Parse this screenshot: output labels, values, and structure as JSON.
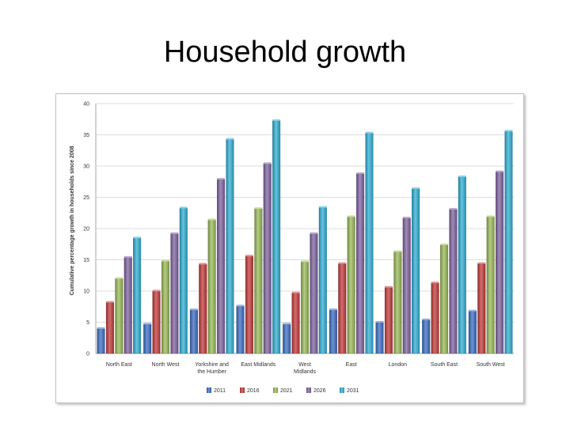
{
  "slide": {
    "title": "Household growth"
  },
  "chart_data": {
    "type": "bar",
    "title": "",
    "xlabel": "",
    "ylabel": "Cumulative percentage growth in households since 2008",
    "ylim": [
      0,
      40
    ],
    "yticks": [
      0,
      5,
      10,
      15,
      20,
      25,
      30,
      35,
      40
    ],
    "grid": true,
    "legend_position": "bottom",
    "categories": [
      [
        "North East"
      ],
      [
        "North West"
      ],
      [
        "Yorkshire and",
        "the Humber"
      ],
      [
        "East Midlands"
      ],
      [
        "West",
        "Midlands"
      ],
      [
        "East"
      ],
      [
        "London"
      ],
      [
        "South East"
      ],
      [
        "South West"
      ]
    ],
    "series": [
      {
        "name": "2011",
        "color": "#3d6fc4",
        "values": [
          4.0,
          4.7,
          7.0,
          7.6,
          4.7,
          7.0,
          5.0,
          5.4,
          6.8
        ]
      },
      {
        "name": "2016",
        "color": "#c43c3c",
        "values": [
          8.2,
          10.0,
          14.3,
          15.6,
          9.7,
          14.4,
          10.6,
          11.3,
          14.4
        ]
      },
      {
        "name": "2021",
        "color": "#9bbb59",
        "values": [
          12.0,
          14.8,
          21.4,
          23.2,
          14.7,
          21.9,
          16.3,
          17.4,
          21.9
        ]
      },
      {
        "name": "2026",
        "color": "#8064a2",
        "values": [
          15.4,
          19.2,
          27.9,
          30.4,
          19.2,
          28.8,
          21.7,
          23.1,
          29.1
        ]
      },
      {
        "name": "2031",
        "color": "#31b0d5",
        "values": [
          18.5,
          23.3,
          34.3,
          37.3,
          23.4,
          35.3,
          26.4,
          28.3,
          35.6
        ]
      }
    ]
  }
}
